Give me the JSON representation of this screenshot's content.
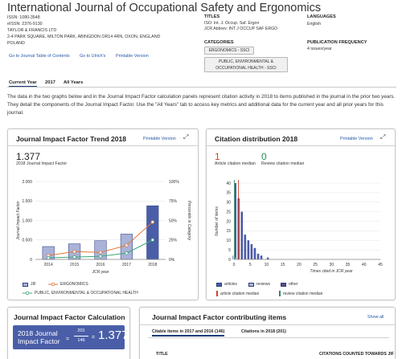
{
  "journal": {
    "title": "International Journal of Occupational Safety and Ergonomics",
    "issn": "ISSN: 1080-3548",
    "eissn": "eISSN: 2376-9130",
    "publisher": "TAYLOR & FRANCIS LTD",
    "address": "2-4 PARK SQUARE, MILTON PARK, ABINGDON OR14 4RN, OXON, ENGLAND",
    "country": "POLAND",
    "links": [
      "Go to Journal Table of Contents",
      "Go to Ulrich's",
      "Printable Version"
    ]
  },
  "titles": {
    "heading": "TITLES",
    "iso": "ISO: Int. J. Occup. Saf. Ergon",
    "jcr_abbrev": "JCR Abbrev: INT J OCCUP SAF ERGO"
  },
  "categories": {
    "heading": "CATEGORIES",
    "items": [
      "ERGONOMICS - SSCI",
      "PUBLIC, ENVIRONMENTAL &",
      "OCCUPATIONAL HEALTH - SSCI"
    ]
  },
  "languages": {
    "heading": "LANGUAGES",
    "value": "English"
  },
  "frequency": {
    "heading": "PUBLICATION FREQUENCY",
    "value": "4 issues/year"
  },
  "tabs": [
    "Current Year",
    "2017",
    "All Years"
  ],
  "intro": "The data in the two graphs below and in the Journal Impact Factor calculation panels represent citation activity in 2018 to items published in the journal in the prior two years. They detail the components of the Journal Impact Factor. Use the \"All Years\" tab to access key metrics and additional data for the current year and all prior years for this journal.",
  "trend_panel": {
    "title": "Journal Impact Factor Trend 2018",
    "printable": "Printable Version",
    "value": "1.377",
    "subtitle": "2018 Journal Impact Factor",
    "y_title_left": "Journal Impact Factor",
    "y_title_right": "Percentile in Category",
    "x_title": "JCR year",
    "y_ticks_left": [
      "2.000",
      "1.500",
      "1.000",
      "0.500",
      "0"
    ],
    "y_ticks_right": [
      "100%",
      "75%",
      "50%",
      "25%",
      "0%"
    ],
    "legend": [
      "JIF",
      "ERGONOMICS",
      "PUBLIC, ENVIRONMENTAL & OCCUPATIONAL HEALTH"
    ]
  },
  "dist_panel": {
    "title": "Citation distribution 2018",
    "printable": "Printable Version",
    "article_median": "1",
    "article_median_label": "Article citation median",
    "review_median": "0",
    "review_median_label": "Review citation median",
    "y_title": "Number of items",
    "x_title": "Times cited in JCR year",
    "y_ticks": [
      "40",
      "35",
      "30",
      "25",
      "20",
      "15",
      "10",
      "5",
      "0"
    ],
    "x_ticks": [
      "0",
      "5",
      "10",
      "15",
      "20",
      "25",
      "30",
      "35",
      "40",
      "45"
    ],
    "legend": [
      "articles",
      "reviews",
      "other",
      "article citation median",
      "review citation median"
    ]
  },
  "calc_panel": {
    "title": "Journal Impact Factor Calculation",
    "label_line1": "2018 Journal",
    "label_line2": "Impact Factor",
    "numerator": "201",
    "denominator": "146",
    "equals": "=",
    "result": "1.377"
  },
  "contrib_panel": {
    "title": "Journal Impact Factor contributing items",
    "show_all": "Show all",
    "tab1": "Citable items in 2017 and 2016 (146)",
    "tab2": "Citations in 2018 (201)",
    "col1": "TITLE",
    "col2": "CITATIONS COUNTED TOWARDS JIF"
  },
  "chart_data": [
    {
      "type": "bar",
      "title": "Journal Impact Factor Trend 2018",
      "categories": [
        "2014",
        "2015",
        "2016",
        "2017",
        "2018"
      ],
      "xlabel": "JCR year",
      "ylabel": "Journal Impact Factor",
      "ylim": [
        0,
        2.0
      ],
      "series": [
        {
          "name": "JIF",
          "values": [
            0.33,
            0.4,
            0.48,
            0.65,
            1.377
          ]
        },
        {
          "name": "ERGONOMICS",
          "values": [
            5,
            10,
            9,
            18,
            48
          ]
        },
        {
          "name": "PUBLIC, ENVIRONMENTAL & OCCUPATIONAL HEALTH",
          "values": [
            2,
            3,
            4,
            8,
            25
          ]
        }
      ],
      "y2label": "Percentile in Category",
      "y2lim": [
        0,
        100
      ]
    },
    {
      "type": "bar",
      "title": "Citation distribution 2018",
      "xlabel": "Times cited in JCR year",
      "ylabel": "Number of items",
      "ylim": [
        0,
        42
      ],
      "xlim": [
        0,
        45
      ],
      "series": [
        {
          "name": "articles",
          "x": [
            0,
            1,
            2,
            3,
            4,
            5,
            6,
            7,
            8,
            10
          ],
          "values": [
            40,
            32,
            25,
            13,
            10,
            8,
            6,
            3,
            2,
            1
          ]
        },
        {
          "name": "reviews",
          "x": [
            0,
            1
          ],
          "values": [
            2,
            1
          ]
        },
        {
          "name": "other",
          "x": [],
          "values": []
        }
      ],
      "article_median": 1,
      "review_median": 0,
      "colors": {
        "articles": "#4b5ba7",
        "reviews": "#a9b3d6",
        "other": "#5e4a8e",
        "article_median": "#d2452a",
        "review_median": "#2c8c5e"
      }
    }
  ],
  "colors": {
    "jif_bar": "#aab2d8",
    "jif_bar_last": "#4a5ea8",
    "ergonomics": "#e07a3a",
    "public_health": "#3ea779",
    "link": "#2457a7",
    "article_median": "#d2452a",
    "review_median": "#2c8c5e"
  }
}
